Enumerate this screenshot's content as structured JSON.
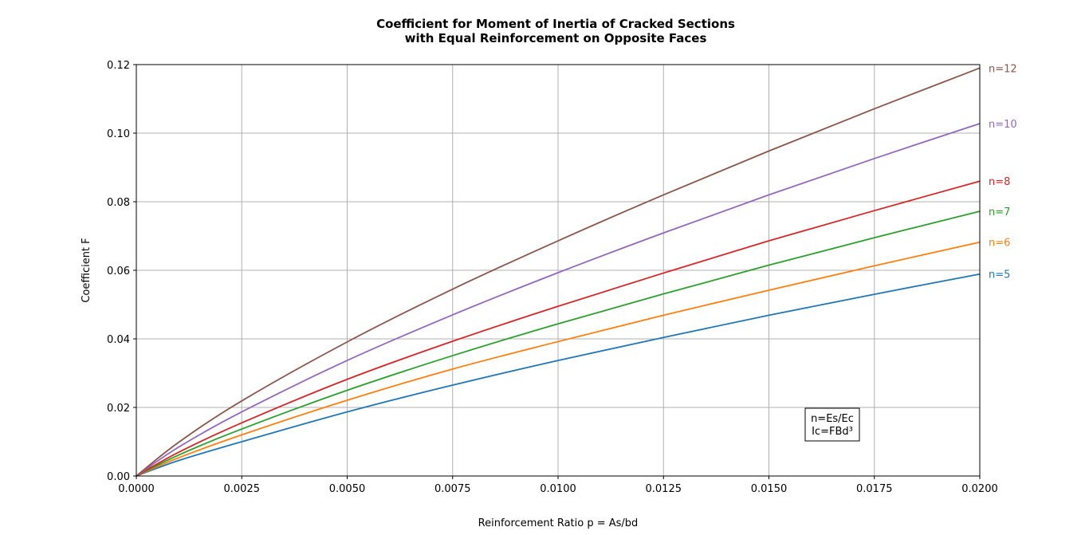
{
  "chart_data": {
    "type": "line",
    "title_lines": [
      "Coefficient for Moment of Inertia of Cracked Sections",
      "with Equal Reinforcement on Opposite Faces"
    ],
    "xlabel": "Reinforcement Ratio p = As/bd",
    "ylabel": "Coefficient  F",
    "xlim": [
      0,
      0.02
    ],
    "ylim": [
      0,
      0.12
    ],
    "grid": true,
    "x_ticks": [
      0,
      0.0025,
      0.005,
      0.0075,
      0.01,
      0.0125,
      0.015,
      0.0175,
      0.02
    ],
    "x_tick_labels": [
      "0.0000",
      "0.0025",
      "0.0050",
      "0.0075",
      "0.0100",
      "0.0125",
      "0.0150",
      "0.0175",
      "0.0200"
    ],
    "y_ticks": [
      0,
      0.02,
      0.04,
      0.06,
      0.08,
      0.1,
      0.12
    ],
    "y_tick_labels": [
      "0.00",
      "0.02",
      "0.04",
      "0.06",
      "0.08",
      "0.10",
      "0.12"
    ],
    "x": [
      0,
      0.001,
      0.0025,
      0.005,
      0.0075,
      0.01,
      0.0125,
      0.015,
      0.0175,
      0.02
    ],
    "series": [
      {
        "name": "n=5",
        "color": "#1f77b4",
        "values": [
          0,
          0.0045,
          0.01,
          0.0187,
          0.0265,
          0.0337,
          0.0404,
          0.0469,
          0.053,
          0.0589
        ]
      },
      {
        "name": "n=6",
        "color": "#ff7f0e",
        "values": [
          0,
          0.0053,
          0.012,
          0.0221,
          0.0312,
          0.0392,
          0.0469,
          0.0542,
          0.0613,
          0.0682
        ]
      },
      {
        "name": "n=7",
        "color": "#2ca02c",
        "values": [
          0,
          0.0061,
          0.0137,
          0.025,
          0.0351,
          0.0444,
          0.0531,
          0.0615,
          0.0695,
          0.0772
        ]
      },
      {
        "name": "n=8",
        "color": "#d62728",
        "values": [
          0,
          0.0069,
          0.0155,
          0.0282,
          0.0393,
          0.0495,
          0.0592,
          0.0686,
          0.0774,
          0.086
        ]
      },
      {
        "name": "n=10",
        "color": "#9467bd",
        "values": [
          0,
          0.0084,
          0.0187,
          0.0337,
          0.047,
          0.0593,
          0.0709,
          0.082,
          0.0926,
          0.1028
        ]
      },
      {
        "name": "n=12",
        "color": "#8c564b",
        "values": [
          0,
          0.0098,
          0.0219,
          0.0391,
          0.0545,
          0.0686,
          0.082,
          0.0948,
          0.1071,
          0.119
        ]
      }
    ],
    "annotation_lines": [
      "n=Es/Ec",
      "Ic=FBd³"
    ]
  }
}
